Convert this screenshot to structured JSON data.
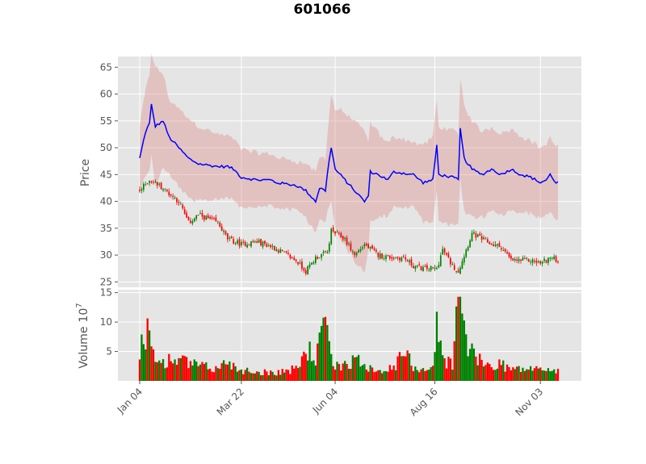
{
  "chart_data": {
    "title": "601066",
    "type": "candlestick-with-volume",
    "style": "ggplot",
    "price_panel": {
      "ylabel": "Price",
      "ylim": [
        24,
        67
      ],
      "yticks": [
        25,
        30,
        35,
        40,
        45,
        50,
        55,
        60,
        65
      ],
      "overlay_line_color": "#0000ff",
      "band_color": "#d9827a",
      "up_color": "#008000",
      "down_color": "#ff0000"
    },
    "volume_panel": {
      "ylabel": "Volume",
      "ylabel_exponent": "7",
      "ylim": [
        0,
        15.5
      ],
      "yticks": [
        "5",
        "10",
        "15"
      ],
      "ytick_values": [
        5,
        10,
        15
      ]
    },
    "xaxis": {
      "tick_labels": [
        "Jan 04",
        "Mar 22",
        "Jun 04",
        "Aug 16",
        "Nov 03"
      ],
      "tick_sessions": [
        0,
        52,
        100,
        151,
        205
      ],
      "sessions": 215
    },
    "close_anchors": [
      [
        0,
        42
      ],
      [
        5,
        44
      ],
      [
        10,
        43
      ],
      [
        20,
        40
      ],
      [
        25,
        36
      ],
      [
        30,
        37.5
      ],
      [
        40,
        36
      ],
      [
        45,
        33
      ],
      [
        52,
        32
      ],
      [
        60,
        32.5
      ],
      [
        68,
        31.5
      ],
      [
        73,
        30.5
      ],
      [
        80,
        29
      ],
      [
        85,
        27
      ],
      [
        90,
        29.5
      ],
      [
        96,
        30.5
      ],
      [
        98,
        34.5
      ],
      [
        105,
        33
      ],
      [
        110,
        30
      ],
      [
        115,
        32
      ],
      [
        122,
        30
      ],
      [
        130,
        29.5
      ],
      [
        135,
        29.5
      ],
      [
        140,
        28
      ],
      [
        145,
        27.5
      ],
      [
        152,
        27.5
      ],
      [
        155,
        31
      ],
      [
        160,
        28
      ],
      [
        163,
        27
      ],
      [
        167,
        31
      ],
      [
        170,
        34
      ],
      [
        175,
        33
      ],
      [
        180,
        32
      ],
      [
        185,
        31.5
      ],
      [
        190,
        29
      ],
      [
        200,
        29
      ],
      [
        205,
        28.5
      ],
      [
        210,
        29.5
      ],
      [
        214,
        29
      ]
    ],
    "ma_anchors": [
      [
        0,
        48
      ],
      [
        3,
        53
      ],
      [
        5,
        54.5
      ],
      [
        6,
        58
      ],
      [
        8,
        54
      ],
      [
        12,
        55
      ],
      [
        15,
        52
      ],
      [
        20,
        50
      ],
      [
        25,
        48
      ],
      [
        30,
        47
      ],
      [
        40,
        46.5
      ],
      [
        45,
        46.5
      ],
      [
        48,
        46
      ],
      [
        52,
        44.5
      ],
      [
        60,
        44
      ],
      [
        67,
        44
      ],
      [
        70,
        43.5
      ],
      [
        80,
        43
      ],
      [
        85,
        42
      ],
      [
        90,
        40
      ],
      [
        92,
        42.5
      ],
      [
        95,
        42
      ],
      [
        97,
        48
      ],
      [
        98,
        50
      ],
      [
        100,
        46
      ],
      [
        105,
        44
      ],
      [
        110,
        42
      ],
      [
        115,
        40
      ],
      [
        117,
        41
      ],
      [
        118,
        45.5
      ],
      [
        122,
        45
      ],
      [
        127,
        44
      ],
      [
        130,
        45.5
      ],
      [
        140,
        45
      ],
      [
        145,
        43.5
      ],
      [
        150,
        44
      ],
      [
        152,
        50.5
      ],
      [
        153,
        45
      ],
      [
        160,
        44.5
      ],
      [
        163,
        44
      ],
      [
        164,
        53.5
      ],
      [
        166,
        48
      ],
      [
        170,
        46
      ],
      [
        175,
        45
      ],
      [
        180,
        46
      ],
      [
        185,
        45
      ],
      [
        190,
        46
      ],
      [
        195,
        45
      ],
      [
        200,
        44.5
      ],
      [
        205,
        43.5
      ],
      [
        208,
        44
      ],
      [
        210,
        45
      ],
      [
        213,
        43.5
      ],
      [
        215,
        43.5
      ]
    ],
    "band_halfwidth_anchors": [
      [
        0,
        6
      ],
      [
        5,
        9
      ],
      [
        8,
        11
      ],
      [
        15,
        7
      ],
      [
        25,
        7.5
      ],
      [
        40,
        6
      ],
      [
        60,
        5
      ],
      [
        80,
        4.5
      ],
      [
        95,
        6
      ],
      [
        98,
        10
      ],
      [
        102,
        12
      ],
      [
        110,
        13
      ],
      [
        115,
        13
      ],
      [
        118,
        9
      ],
      [
        125,
        7
      ],
      [
        140,
        6
      ],
      [
        150,
        8
      ],
      [
        155,
        9
      ],
      [
        163,
        8.5
      ],
      [
        165,
        10
      ],
      [
        175,
        8
      ],
      [
        190,
        7.5
      ],
      [
        205,
        6.5
      ],
      [
        215,
        7
      ]
    ],
    "volume_anchors": [
      [
        0,
        4
      ],
      [
        2,
        7.5
      ],
      [
        5,
        9.5
      ],
      [
        6,
        5
      ],
      [
        8,
        3
      ],
      [
        12,
        3.5
      ],
      [
        20,
        3.5
      ],
      [
        25,
        3
      ],
      [
        30,
        2.5
      ],
      [
        40,
        2
      ],
      [
        45,
        3.5
      ],
      [
        50,
        2
      ],
      [
        60,
        1.5
      ],
      [
        70,
        1.5
      ],
      [
        80,
        2
      ],
      [
        86,
        5.5
      ],
      [
        90,
        3.5
      ],
      [
        94,
        9
      ],
      [
        95,
        13.3
      ],
      [
        96,
        7
      ],
      [
        97,
        5
      ],
      [
        100,
        2.5
      ],
      [
        110,
        3.5
      ],
      [
        115,
        3
      ],
      [
        120,
        2
      ],
      [
        130,
        2
      ],
      [
        135,
        5
      ],
      [
        140,
        2.5
      ],
      [
        145,
        2
      ],
      [
        150,
        2.5
      ],
      [
        152,
        9
      ],
      [
        153,
        7
      ],
      [
        156,
        3.5
      ],
      [
        160,
        3
      ],
      [
        163,
        13.5
      ],
      [
        164,
        14.3
      ],
      [
        166,
        9
      ],
      [
        168,
        6
      ],
      [
        172,
        4
      ],
      [
        175,
        3
      ],
      [
        180,
        2.5
      ],
      [
        185,
        3
      ],
      [
        190,
        2
      ],
      [
        200,
        2
      ],
      [
        205,
        2
      ],
      [
        210,
        2
      ],
      [
        214,
        1.5
      ]
    ]
  }
}
